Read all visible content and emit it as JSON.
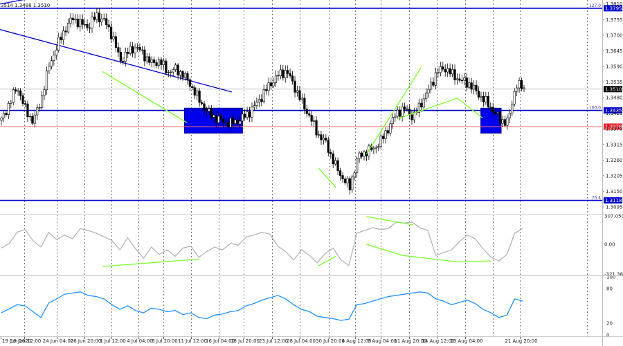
{
  "header": {
    "text": "3514 1.3488 1.3510"
  },
  "chart_data": {
    "type": "candlestick",
    "price_axis": {
      "range": [
        1.3078,
        1.3824
      ],
      "ticks": [
        "1.3810",
        "1.3755",
        "1.3700",
        "1.3645",
        "1.3590",
        "1.3535",
        "1.3480",
        "1.3425",
        "1.3370",
        "1.3315",
        "1.3260",
        "1.3205",
        "1.3150",
        "1.3095"
      ]
    },
    "time_axis": {
      "labels": [
        "19 Jun 2020",
        "19 Jun 12:00",
        "24 Jun 04:00",
        "26 Jun 20:00",
        "1 Jul 12:00",
        "4 Jul 04:00",
        "8 Jul 20:00",
        "11 Jul 12:00",
        "16 Jul 04:00",
        "18 Jul 20:00",
        "23 Jul 12:00",
        "28 Jul 04:00",
        "30 Jul 20:00",
        "4 Aug 12:00",
        "7 Aug 04:00",
        "11 Aug 20:00",
        "14 Aug 12:00",
        "19 Aug 04:00",
        "21 Aug 20:00"
      ]
    },
    "close_path": [
      1.34,
      1.346,
      1.352,
      1.344,
      1.3395,
      1.347,
      1.359,
      1.366,
      1.372,
      1.376,
      1.374,
      1.373,
      1.377,
      1.375,
      1.37,
      1.361,
      1.364,
      1.366,
      1.363,
      1.36,
      1.361,
      1.357,
      1.358,
      1.356,
      1.352,
      1.347,
      1.343,
      1.341,
      1.3395,
      1.339,
      1.34,
      1.342,
      1.345,
      1.349,
      1.353,
      1.356,
      1.3575,
      1.352,
      1.346,
      1.341,
      1.335,
      1.332,
      1.325,
      1.32,
      1.3165,
      1.327,
      1.329,
      1.33,
      1.333,
      1.338,
      1.343,
      1.344,
      1.341,
      1.346,
      1.351,
      1.357,
      1.3585,
      1.356,
      1.354,
      1.353,
      1.35,
      1.347,
      1.344,
      1.34,
      1.3395,
      1.353,
      1.351
    ],
    "levels": [
      {
        "label": "127.0",
        "value": "1.3795",
        "color": "#0000cc",
        "tag_color": "#0000cc"
      },
      {
        "label": "100.0",
        "value": "1.3435",
        "color": "#0000cc",
        "tag_color": "#0000cc"
      },
      {
        "label": "",
        "value": "1.3378",
        "color": "#ff6a6a",
        "tag_color": "#e4202a"
      },
      {
        "label": "76.4",
        "value": "1.3118",
        "color": "#0000cc",
        "tag_color": "#0000cc"
      }
    ],
    "current_price": "1.3510",
    "trend_channel": {
      "p1": [
        0,
        1.372
      ],
      "p2": [
        0.387,
        1.35
      ]
    },
    "trend_channel2": {
      "p1": [
        0,
        1.381
      ],
      "p2": [
        0.13,
        1.386
      ]
    },
    "divergence_lines_price": [
      [
        [
          0.171,
          1.3572
        ],
        [
          0.312,
          1.3392
        ]
      ],
      [
        [
          0.532,
          1.3232
        ],
        [
          0.561,
          1.3164
        ]
      ],
      [
        [
          0.612,
          1.3281
        ],
        [
          0.703,
          1.3585
        ]
      ],
      [
        [
          0.663,
          1.3405
        ],
        [
          0.764,
          1.3478
        ],
        [
          0.806,
          1.3408
        ]
      ]
    ],
    "boxes": [
      {
        "x": [
          0.308,
          0.405
        ],
        "y": [
          1.3355,
          1.3443
        ],
        "color": "#0000ee"
      },
      {
        "x": [
          0.803,
          0.837
        ],
        "y": [
          1.3355,
          1.3443
        ],
        "color": "#0000ee"
      }
    ],
    "cci": {
      "name": "CCI",
      "range": [
        -321.389,
        307.0503
      ],
      "ticks": [
        "307.0503",
        "0.00",
        "-321.389"
      ],
      "values": [
        -40,
        10,
        130,
        160,
        40,
        -30,
        130,
        50,
        100,
        60,
        170,
        150,
        120,
        80,
        40,
        -60,
        70,
        -50,
        -150,
        -30,
        -110,
        -60,
        -130,
        -40,
        -20,
        -140,
        -80,
        -30,
        -60,
        10,
        -10,
        80,
        100,
        130,
        110,
        -20,
        -80,
        -170,
        -60,
        -120,
        -200,
        -100,
        -40,
        -170,
        -230,
        120,
        150,
        180,
        160,
        170,
        240,
        230,
        240,
        180,
        150,
        -120,
        -90,
        -60,
        30,
        100,
        60,
        -50,
        -140,
        -180,
        -110,
        120,
        170
      ],
      "divergences": [
        [
          [
            0.171,
            -240
          ],
          [
            0.333,
            -160
          ]
        ],
        [
          [
            0.531,
            -235
          ],
          [
            0.561,
            -130
          ]
        ],
        [
          [
            0.612,
            300
          ],
          [
            0.69,
            210
          ]
        ],
        [
          [
            0.612,
            0
          ],
          [
            0.672,
            -120
          ],
          [
            0.764,
            -190
          ],
          [
            0.82,
            -180
          ]
        ]
      ]
    },
    "osc2": {
      "range": [
        0,
        100
      ],
      "ticks": [
        "100",
        "80",
        "20",
        "0"
      ],
      "values": [
        38,
        45,
        52,
        50,
        40,
        30,
        55,
        62,
        70,
        72,
        74,
        68,
        66,
        62,
        52,
        44,
        50,
        42,
        38,
        46,
        44,
        40,
        42,
        35,
        38,
        30,
        28,
        34,
        36,
        40,
        42,
        50,
        54,
        60,
        64,
        68,
        62,
        52,
        44,
        40,
        32,
        30,
        28,
        25,
        27,
        52,
        54,
        58,
        62,
        66,
        68,
        70,
        72,
        74,
        72,
        62,
        58,
        52,
        56,
        60,
        54,
        44,
        38,
        30,
        34,
        62,
        58
      ]
    }
  }
}
